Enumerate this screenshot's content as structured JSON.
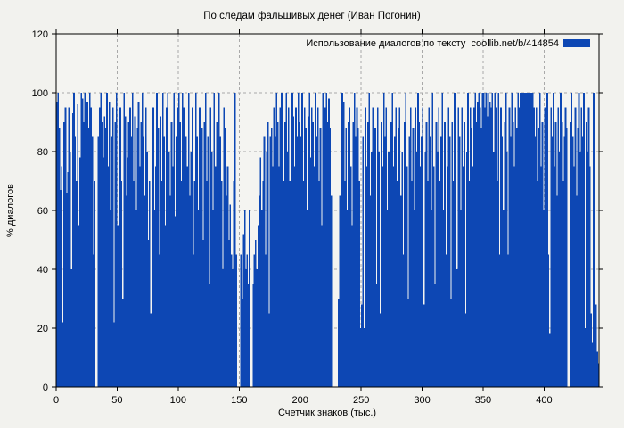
{
  "title": "По следам фальшивых денег (Иван Погонин)",
  "legend": {
    "label": "Использование диалогов по тексту  coollib.net/b/414854",
    "swatch_color": "#0d47b4",
    "position": "top-right"
  },
  "colors": {
    "bar": "#0d47b4",
    "grid": "#a9a9a9",
    "frame": "#000000",
    "background": "#f2f2ee",
    "plot_background": "#f4f4f1",
    "text": "#000000"
  },
  "chart_data": {
    "type": "bar",
    "title": "По следам фальшивых денег (Иван Погонин)",
    "xlabel": "Счетчик знаков (тыс.)",
    "ylabel": "% диалогов",
    "xlim": [
      0,
      445
    ],
    "ylim": [
      0,
      120
    ],
    "x_ticks": [
      0,
      50,
      100,
      150,
      200,
      250,
      300,
      350,
      400
    ],
    "y_ticks": [
      0,
      20,
      40,
      60,
      80,
      100,
      120
    ],
    "x_gridlines": [
      50,
      100,
      150,
      200,
      250,
      300,
      350,
      400
    ],
    "y_gridlines": [
      20,
      40,
      60,
      80,
      100
    ],
    "grid": "dashed",
    "legend_position": "top-right",
    "x_start": 0,
    "x_step": 1,
    "values": [
      97,
      100,
      88,
      67,
      75,
      22,
      90,
      95,
      66,
      73,
      95,
      80,
      40,
      93,
      100,
      85,
      70,
      96,
      55,
      78,
      100,
      98,
      90,
      100,
      92,
      97,
      88,
      100,
      95,
      85,
      45,
      70,
      0,
      0,
      85,
      95,
      100,
      90,
      78,
      92,
      88,
      100,
      75,
      97,
      60,
      85,
      95,
      22,
      90,
      100,
      55,
      80,
      95,
      70,
      30,
      100,
      92,
      65,
      78,
      90,
      95,
      85,
      100,
      70,
      92,
      60,
      88,
      97,
      75,
      90,
      100,
      85,
      65,
      95,
      80,
      50,
      70,
      25,
      90,
      95,
      60,
      75,
      100,
      88,
      45,
      92,
      70,
      100,
      85,
      55,
      95,
      100,
      80,
      65,
      90,
      75,
      100,
      58,
      85,
      95,
      100,
      90,
      70,
      100,
      95,
      55,
      85,
      75,
      100,
      65,
      80,
      95,
      45,
      70,
      100,
      85,
      60,
      95,
      75,
      88,
      50,
      90,
      100,
      70,
      85,
      35,
      95,
      80,
      60,
      100,
      75,
      90,
      55,
      100,
      85,
      70,
      40,
      95,
      88,
      65,
      75,
      50,
      62,
      45,
      40,
      70,
      100,
      45,
      0,
      0,
      0,
      45,
      30,
      52,
      60,
      40,
      45,
      35,
      60,
      0,
      0,
      35,
      45,
      50,
      40,
      55,
      65,
      78,
      60,
      70,
      85,
      45,
      80,
      90,
      25,
      85,
      88,
      75,
      95,
      85,
      100,
      90,
      75,
      95,
      100,
      100,
      70,
      90,
      100,
      80,
      95,
      70,
      88,
      100,
      92,
      75,
      95,
      85,
      100,
      90,
      85,
      100,
      70,
      95,
      88,
      60,
      92,
      100,
      78,
      95,
      90,
      75,
      100,
      85,
      95,
      70,
      88,
      55,
      100,
      95,
      95,
      100,
      90,
      98,
      88,
      65,
      0,
      0,
      0,
      0,
      0,
      30,
      65,
      95,
      100,
      97,
      70,
      88,
      60,
      90,
      95,
      75,
      55,
      90,
      100,
      85,
      95,
      88,
      70,
      20,
      28,
      85,
      20,
      95,
      75,
      90,
      100,
      65,
      80,
      95,
      70,
      88,
      35,
      95,
      80,
      25,
      90,
      75,
      100,
      85,
      95,
      60,
      80,
      30,
      90,
      100,
      75,
      85,
      95,
      70,
      88,
      95,
      65,
      80,
      45,
      90,
      100,
      75,
      30,
      85,
      95,
      70,
      88,
      60,
      95,
      80,
      100,
      90,
      75,
      85,
      95,
      28,
      80,
      90,
      70,
      95,
      85,
      60,
      100,
      75,
      35,
      90,
      80,
      95,
      70,
      85,
      100,
      60,
      90,
      45,
      75,
      95,
      85,
      30,
      90,
      70,
      100,
      80,
      40,
      95,
      85,
      60,
      95,
      75,
      90,
      25,
      80,
      100,
      70,
      95,
      88,
      75,
      95,
      100,
      90,
      97,
      100,
      95,
      88,
      100,
      100,
      95,
      100,
      92,
      100,
      97,
      95,
      100,
      80,
      100,
      95,
      70,
      100,
      45,
      95,
      85,
      60,
      90,
      100,
      80,
      45,
      95,
      85,
      100,
      90,
      75,
      95,
      88,
      100,
      95,
      100,
      100,
      100,
      100,
      100,
      100,
      100,
      100,
      100,
      100,
      100,
      95,
      85,
      95,
      70,
      88,
      100,
      75,
      90,
      60,
      95,
      80,
      100,
      45,
      18,
      95,
      85,
      100,
      75,
      90,
      65,
      95,
      80,
      100,
      90,
      70,
      85,
      95,
      88,
      0,
      0,
      90,
      100,
      85,
      75,
      95,
      65,
      88,
      100,
      80,
      95,
      85,
      100,
      20,
      90,
      80,
      95,
      75,
      25,
      15,
      100,
      65,
      28,
      12,
      8
    ]
  }
}
